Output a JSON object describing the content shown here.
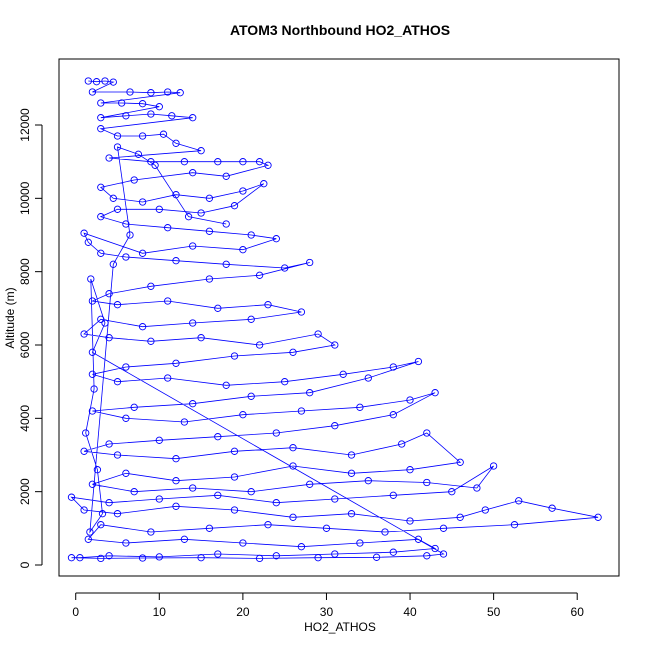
{
  "chart_data": {
    "type": "scatter",
    "mode": "points-and-lines",
    "title": "ATOM3 Northbound HO2_ATHOS",
    "xlabel": "HO2_ATHOS",
    "ylabel": "Altitude (m)",
    "xlim": [
      -2,
      65
    ],
    "ylim": [
      -300,
      13800
    ],
    "xticks": [
      0,
      10,
      20,
      30,
      40,
      50,
      60
    ],
    "yticks": [
      0,
      2000,
      4000,
      6000,
      8000,
      10000,
      12000
    ],
    "grid": false,
    "legend": "none",
    "marker": "open-circle",
    "color": "#0000ff",
    "series": [
      {
        "values": [
          [
            1.5,
            13200
          ],
          [
            2.5,
            13180
          ],
          [
            3.5,
            13200
          ],
          [
            4.5,
            13170
          ],
          [
            2.0,
            12900
          ],
          [
            6.5,
            12900
          ],
          [
            9.0,
            12880
          ],
          [
            11.0,
            12900
          ],
          [
            12.5,
            12880
          ],
          [
            3.0,
            12600
          ],
          [
            5.5,
            12600
          ],
          [
            8.0,
            12580
          ],
          [
            10.0,
            12500
          ],
          [
            3.0,
            12200
          ],
          [
            6.0,
            12250
          ],
          [
            9.0,
            12300
          ],
          [
            11.5,
            12250
          ],
          [
            14.0,
            12200
          ],
          [
            3.0,
            11900
          ],
          [
            5.0,
            11700
          ],
          [
            8.0,
            11700
          ],
          [
            10.5,
            11750
          ],
          [
            12.0,
            11500
          ],
          [
            15.0,
            11300
          ],
          [
            4.0,
            11100
          ],
          [
            9.0,
            11000
          ],
          [
            13.0,
            11000
          ],
          [
            17.0,
            11000
          ],
          [
            20.0,
            11000
          ],
          [
            22.0,
            11000
          ],
          [
            23.0,
            10900
          ],
          [
            18.0,
            10600
          ],
          [
            14.0,
            10700
          ],
          [
            7.0,
            10500
          ],
          [
            3.0,
            10300
          ],
          [
            4.5,
            10000
          ],
          [
            8.0,
            9900
          ],
          [
            12.0,
            10100
          ],
          [
            16.0,
            10000
          ],
          [
            20.0,
            10200
          ],
          [
            22.5,
            10400
          ],
          [
            19.0,
            9800
          ],
          [
            15.0,
            9600
          ],
          [
            10.0,
            9700
          ],
          [
            5.0,
            9700
          ],
          [
            3.0,
            9500
          ],
          [
            6.0,
            9300
          ],
          [
            11.0,
            9200
          ],
          [
            16.0,
            9100
          ],
          [
            21.0,
            9000
          ],
          [
            24.0,
            8900
          ],
          [
            20.0,
            8600
          ],
          [
            14.0,
            8700
          ],
          [
            8.0,
            8500
          ],
          [
            1.0,
            9050
          ],
          [
            1.5,
            8800
          ],
          [
            3.0,
            8500
          ],
          [
            6.0,
            8400
          ],
          [
            12.0,
            8300
          ],
          [
            18.0,
            8200
          ],
          [
            25.0,
            8100
          ],
          [
            28.0,
            8250
          ],
          [
            22.0,
            7900
          ],
          [
            16.0,
            7800
          ],
          [
            9.0,
            7600
          ],
          [
            4.0,
            7400
          ],
          [
            2.0,
            7200
          ],
          [
            5.0,
            7100
          ],
          [
            11.0,
            7200
          ],
          [
            17.0,
            7000
          ],
          [
            23.0,
            7100
          ],
          [
            27.0,
            6900
          ],
          [
            21.0,
            6700
          ],
          [
            14.0,
            6600
          ],
          [
            8.0,
            6500
          ],
          [
            3.0,
            6700
          ],
          [
            1.0,
            6300
          ],
          [
            4.0,
            6200
          ],
          [
            9.0,
            6100
          ],
          [
            15.0,
            6200
          ],
          [
            22.0,
            6000
          ],
          [
            29.0,
            6300
          ],
          [
            31.0,
            6000
          ],
          [
            26.0,
            5800
          ],
          [
            19.0,
            5700
          ],
          [
            12.0,
            5500
          ],
          [
            6.0,
            5400
          ],
          [
            2.0,
            5200
          ],
          [
            5.0,
            5000
          ],
          [
            11.0,
            5100
          ],
          [
            18.0,
            4900
          ],
          [
            25.0,
            5000
          ],
          [
            32.0,
            5200
          ],
          [
            38.0,
            5400
          ],
          [
            41.0,
            5550
          ],
          [
            35.0,
            5100
          ],
          [
            28.0,
            4700
          ],
          [
            21.0,
            4600
          ],
          [
            14.0,
            4400
          ],
          [
            7.0,
            4300
          ],
          [
            2.0,
            4200
          ],
          [
            6.0,
            4000
          ],
          [
            13.0,
            3900
          ],
          [
            20.0,
            4100
          ],
          [
            27.0,
            4200
          ],
          [
            34.0,
            4300
          ],
          [
            40.0,
            4500
          ],
          [
            43.0,
            4700
          ],
          [
            38.0,
            4100
          ],
          [
            31.0,
            3800
          ],
          [
            24.0,
            3600
          ],
          [
            17.0,
            3500
          ],
          [
            10.0,
            3400
          ],
          [
            4.0,
            3300
          ],
          [
            1.0,
            3100
          ],
          [
            5.0,
            3000
          ],
          [
            12.0,
            2900
          ],
          [
            19.0,
            3100
          ],
          [
            26.0,
            3200
          ],
          [
            33.0,
            3000
          ],
          [
            39.0,
            3300
          ],
          [
            42.0,
            3600
          ],
          [
            46.0,
            2800
          ],
          [
            40.0,
            2600
          ],
          [
            33.0,
            2500
          ],
          [
            26.0,
            2700
          ],
          [
            19.0,
            2400
          ],
          [
            12.0,
            2300
          ],
          [
            6.0,
            2500
          ],
          [
            2.0,
            2200
          ],
          [
            7.0,
            2000
          ],
          [
            14.0,
            2100
          ],
          [
            21.0,
            2000
          ],
          [
            28.0,
            2200
          ],
          [
            35.0,
            2300
          ],
          [
            42.0,
            2250
          ],
          [
            48.0,
            2100
          ],
          [
            50.0,
            2700
          ],
          [
            45.0,
            2000
          ],
          [
            38.0,
            1900
          ],
          [
            31.0,
            1800
          ],
          [
            24.0,
            1700
          ],
          [
            17.0,
            1900
          ],
          [
            10.0,
            1800
          ],
          [
            4.0,
            1700
          ],
          [
            -0.5,
            1850
          ],
          [
            1.0,
            1500
          ],
          [
            5.0,
            1400
          ],
          [
            12.0,
            1600
          ],
          [
            19.0,
            1500
          ],
          [
            26.0,
            1300
          ],
          [
            33.0,
            1400
          ],
          [
            40.0,
            1200
          ],
          [
            46.0,
            1300
          ],
          [
            49.0,
            1500
          ],
          [
            53.0,
            1750
          ],
          [
            57.0,
            1550
          ],
          [
            62.5,
            1300
          ],
          [
            52.5,
            1100
          ],
          [
            44.0,
            1000
          ],
          [
            37.0,
            900
          ],
          [
            30.0,
            1000
          ],
          [
            23.0,
            1100
          ],
          [
            16.0,
            1000
          ],
          [
            9.0,
            900
          ],
          [
            3.0,
            1100
          ],
          [
            1.5,
            700
          ],
          [
            6.0,
            600
          ],
          [
            13.0,
            700
          ],
          [
            20.0,
            600
          ],
          [
            27.0,
            500
          ],
          [
            34.0,
            600
          ],
          [
            41.0,
            700
          ],
          [
            43.0,
            450
          ],
          [
            38.0,
            350
          ],
          [
            31.0,
            300
          ],
          [
            24.0,
            250
          ],
          [
            17.0,
            300
          ],
          [
            10.0,
            220
          ],
          [
            4.0,
            250
          ],
          [
            0.5,
            200
          ],
          [
            -0.5,
            200
          ],
          [
            3.0,
            180
          ],
          [
            8.0,
            190
          ],
          [
            15.0,
            200
          ],
          [
            22.0,
            180
          ],
          [
            29.0,
            200
          ],
          [
            36.0,
            210
          ],
          [
            42.0,
            250
          ],
          [
            44.0,
            300
          ],
          [
            2.0,
            5800
          ],
          [
            3.5,
            6600
          ],
          [
            1.8,
            7800
          ],
          [
            2.2,
            4800
          ],
          [
            1.2,
            3600
          ],
          [
            2.6,
            2600
          ],
          [
            3.2,
            1400
          ],
          [
            1.7,
            900
          ],
          [
            4.5,
            8200
          ],
          [
            6.5,
            9000
          ],
          [
            5.0,
            11400
          ],
          [
            7.5,
            11200
          ],
          [
            9.5,
            10900
          ],
          [
            13.5,
            9500
          ],
          [
            18.0,
            9300
          ]
        ]
      }
    ]
  }
}
